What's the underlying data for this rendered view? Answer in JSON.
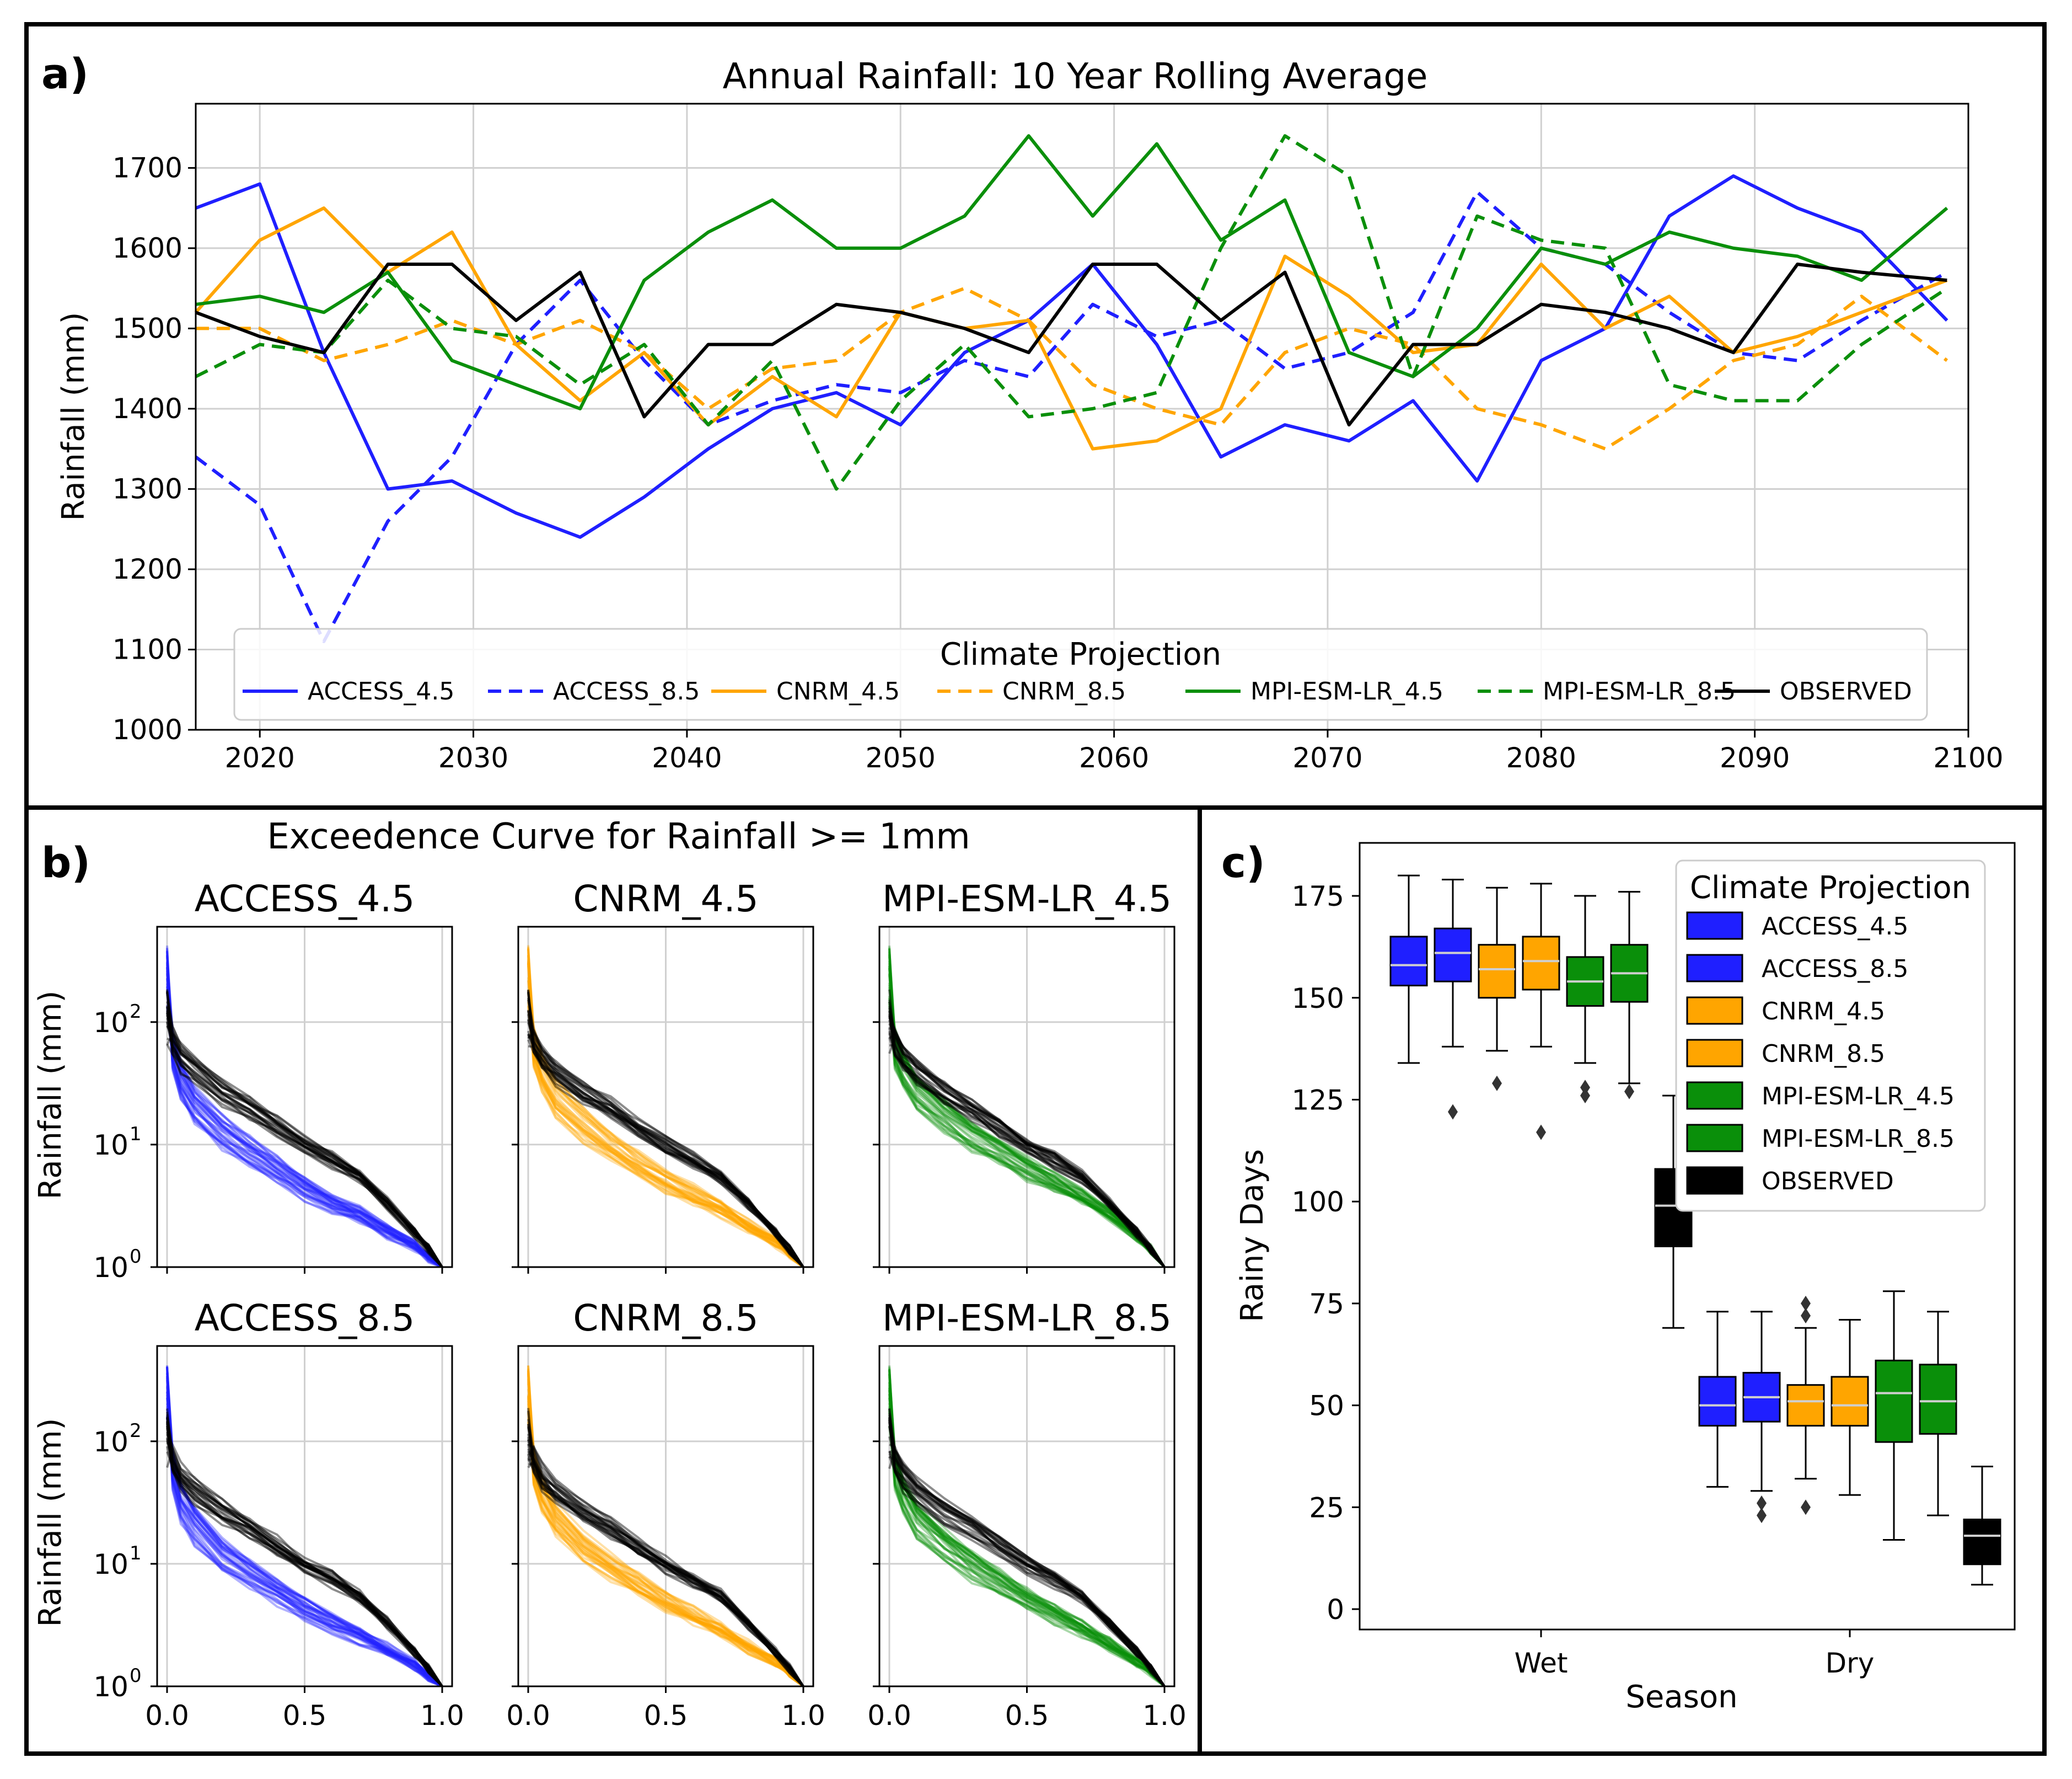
{
  "panel_labels": {
    "a": "a)",
    "b": "b)",
    "c": "c)"
  },
  "colors": {
    "blue": "#1f1fff",
    "orange": "#ffa500",
    "green": "#0a8f0a",
    "black": "#000000"
  },
  "chart_data": [
    {
      "type": "line",
      "title": "Annual Rainfall: 10 Year Rolling Average",
      "xlabel": "",
      "ylabel": "Rainfall (mm)",
      "xlim": [
        2017,
        2100
      ],
      "ylim": [
        1000,
        1780
      ],
      "x_ticks": [
        2020,
        2030,
        2040,
        2050,
        2060,
        2070,
        2080,
        2090,
        2100
      ],
      "y_ticks": [
        1000,
        1100,
        1200,
        1300,
        1400,
        1500,
        1600,
        1700
      ],
      "legend_title": "Climate Projection",
      "x": [
        2017,
        2020,
        2023,
        2026,
        2029,
        2032,
        2035,
        2038,
        2041,
        2044,
        2047,
        2050,
        2053,
        2056,
        2059,
        2062,
        2065,
        2068,
        2071,
        2074,
        2077,
        2080,
        2083,
        2086,
        2089,
        2092,
        2095,
        2099
      ],
      "series": [
        {
          "name": "ACCESS_4.5",
          "color": "blue",
          "dash": false,
          "values": [
            1650,
            1680,
            1470,
            1300,
            1310,
            1270,
            1240,
            1290,
            1350,
            1400,
            1420,
            1380,
            1470,
            1510,
            1580,
            1480,
            1340,
            1380,
            1360,
            1410,
            1310,
            1460,
            1500,
            1640,
            1690,
            1650,
            1620,
            1510
          ]
        },
        {
          "name": "ACCESS_8.5",
          "color": "blue",
          "dash": true,
          "values": [
            1340,
            1280,
            1110,
            1260,
            1340,
            1480,
            1560,
            1460,
            1380,
            1410,
            1430,
            1420,
            1460,
            1440,
            1530,
            1490,
            1510,
            1450,
            1470,
            1520,
            1670,
            1600,
            1580,
            1520,
            1470,
            1460,
            1510,
            1570
          ]
        },
        {
          "name": "CNRM_4.5",
          "color": "orange",
          "dash": false,
          "values": [
            1520,
            1610,
            1650,
            1570,
            1620,
            1480,
            1410,
            1470,
            1380,
            1440,
            1390,
            1520,
            1500,
            1510,
            1350,
            1360,
            1400,
            1590,
            1540,
            1470,
            1480,
            1580,
            1500,
            1540,
            1470,
            1490,
            1520,
            1560
          ]
        },
        {
          "name": "CNRM_8.5",
          "color": "orange",
          "dash": true,
          "values": [
            1500,
            1500,
            1460,
            1480,
            1510,
            1480,
            1510,
            1470,
            1400,
            1450,
            1460,
            1520,
            1550,
            1510,
            1430,
            1400,
            1380,
            1470,
            1500,
            1480,
            1400,
            1380,
            1350,
            1400,
            1460,
            1480,
            1540,
            1460
          ]
        },
        {
          "name": "MPI-ESM-LR_4.5",
          "color": "green",
          "dash": false,
          "values": [
            1530,
            1540,
            1520,
            1570,
            1460,
            1430,
            1400,
            1560,
            1620,
            1660,
            1600,
            1600,
            1640,
            1740,
            1640,
            1730,
            1610,
            1660,
            1470,
            1440,
            1500,
            1600,
            1580,
            1620,
            1600,
            1590,
            1560,
            1650
          ]
        },
        {
          "name": "MPI-ESM-LR_8.5",
          "color": "green",
          "dash": true,
          "values": [
            1440,
            1480,
            1470,
            1560,
            1500,
            1490,
            1430,
            1480,
            1380,
            1460,
            1300,
            1410,
            1480,
            1390,
            1400,
            1420,
            1600,
            1740,
            1690,
            1440,
            1640,
            1610,
            1600,
            1430,
            1410,
            1410,
            1480,
            1550
          ]
        },
        {
          "name": "OBSERVED",
          "color": "black",
          "dash": false,
          "values": [
            1520,
            1490,
            1470,
            1580,
            1580,
            1510,
            1570,
            1390,
            1480,
            1480,
            1530,
            1520,
            1500,
            1470,
            1580,
            1580,
            1510,
            1570,
            1380,
            1480,
            1480,
            1530,
            1520,
            1500,
            1470,
            1580,
            1570,
            1560
          ]
        }
      ]
    },
    {
      "type": "line",
      "title": "Exceedence Curve for Rainfall >= 1mm",
      "ylabel": "Rainfall (mm)",
      "yscale": "log",
      "xlim": [
        0,
        1
      ],
      "ylim": [
        1,
        600
      ],
      "x_ticks": [
        "0.0",
        "0.5",
        "1.0"
      ],
      "y_ticks": [
        "10",
        "10",
        "10"
      ],
      "y_tick_exponents": [
        "0",
        "1",
        "2"
      ],
      "x_sample": [
        0,
        0.02,
        0.05,
        0.1,
        0.2,
        0.3,
        0.4,
        0.5,
        0.6,
        0.7,
        0.8,
        0.9,
        0.95,
        1.0
      ],
      "subplots": [
        {
          "title": "ACCESS_4.5",
          "color": "blue",
          "model_curve": [
            250,
            60,
            35,
            22,
            13,
            9,
            6.5,
            4.5,
            3.4,
            2.7,
            2.0,
            1.5,
            1.2,
            1.0
          ],
          "observed_curve": [
            110,
            70,
            52,
            40,
            27,
            20,
            14,
            10,
            7.5,
            5.5,
            3.3,
            1.9,
            1.4,
            1.0
          ]
        },
        {
          "title": "CNRM_4.5",
          "color": "orange",
          "model_curve": [
            250,
            65,
            40,
            25,
            15,
            10,
            7,
            5.2,
            4,
            3,
            2.2,
            1.6,
            1.3,
            1.0
          ],
          "observed_curve": [
            110,
            70,
            52,
            40,
            27,
            20,
            14,
            10,
            7.5,
            5.5,
            3.3,
            1.9,
            1.4,
            1.0
          ]
        },
        {
          "title": "MPI-ESM-LR_4.5",
          "color": "green",
          "model_curve": [
            250,
            65,
            42,
            28,
            18,
            12,
            9,
            6.5,
            5,
            3.8,
            2.7,
            1.8,
            1.4,
            1.0
          ],
          "observed_curve": [
            110,
            70,
            52,
            40,
            27,
            20,
            14,
            10,
            7.5,
            5.5,
            3.3,
            1.9,
            1.4,
            1.0
          ]
        },
        {
          "title": "ACCESS_8.5",
          "color": "blue",
          "model_curve": [
            250,
            60,
            33,
            21,
            12,
            8.5,
            6,
            4.3,
            3.3,
            2.6,
            2.0,
            1.5,
            1.2,
            1.0
          ],
          "observed_curve": [
            110,
            70,
            52,
            40,
            27,
            20,
            14,
            10,
            7.5,
            5.5,
            3.3,
            1.9,
            1.4,
            1.0
          ]
        },
        {
          "title": "CNRM_8.5",
          "color": "orange",
          "model_curve": [
            250,
            62,
            38,
            24,
            14,
            9.5,
            6.8,
            5,
            3.8,
            2.9,
            2.1,
            1.6,
            1.3,
            1.0
          ],
          "observed_curve": [
            110,
            70,
            52,
            40,
            27,
            20,
            14,
            10,
            7.5,
            5.5,
            3.3,
            1.9,
            1.4,
            1.0
          ]
        },
        {
          "title": "MPI-ESM-LR_8.5",
          "color": "green",
          "model_curve": [
            250,
            62,
            38,
            24,
            15,
            10,
            7.2,
            5.2,
            4,
            3,
            2.2,
            1.6,
            1.3,
            1.0
          ],
          "observed_curve": [
            110,
            70,
            52,
            40,
            27,
            20,
            14,
            10,
            7.5,
            5.5,
            3.3,
            1.9,
            1.4,
            1.0
          ]
        }
      ]
    },
    {
      "type": "box",
      "xlabel": "Season",
      "ylabel": "Rainy Days",
      "categories": [
        "Wet",
        "Dry"
      ],
      "ylim": [
        -5,
        188
      ],
      "y_ticks": [
        0,
        25,
        50,
        75,
        100,
        125,
        150,
        175
      ],
      "legend_title": "Climate Projection",
      "series": [
        {
          "name": "ACCESS_4.5",
          "color": "blue",
          "boxes": [
            {
              "q1": 153,
              "median": 158,
              "q3": 165,
              "wlo": 134,
              "whi": 180,
              "out": []
            },
            {
              "q1": 45,
              "median": 50,
              "q3": 57,
              "wlo": 30,
              "whi": 73,
              "out": []
            }
          ]
        },
        {
          "name": "ACCESS_8.5",
          "color": "blue",
          "boxes": [
            {
              "q1": 154,
              "median": 161,
              "q3": 167,
              "wlo": 138,
              "whi": 179,
              "out": [
                122
              ]
            },
            {
              "q1": 46,
              "median": 52,
              "q3": 58,
              "wlo": 29,
              "whi": 73,
              "out": [
                23,
                26
              ]
            }
          ]
        },
        {
          "name": "CNRM_4.5",
          "color": "orange",
          "boxes": [
            {
              "q1": 150,
              "median": 157,
              "q3": 163,
              "wlo": 137,
              "whi": 177,
              "out": [
                129
              ]
            },
            {
              "q1": 45,
              "median": 51,
              "q3": 55,
              "wlo": 32,
              "whi": 69,
              "out": [
                25,
                72,
                75
              ]
            }
          ]
        },
        {
          "name": "CNRM_8.5",
          "color": "orange",
          "boxes": [
            {
              "q1": 152,
              "median": 159,
              "q3": 165,
              "wlo": 138,
              "whi": 178,
              "out": [
                117
              ]
            },
            {
              "q1": 45,
              "median": 50,
              "q3": 57,
              "wlo": 28,
              "whi": 71,
              "out": []
            }
          ]
        },
        {
          "name": "MPI-ESM-LR_4.5",
          "color": "green",
          "boxes": [
            {
              "q1": 148,
              "median": 154,
              "q3": 160,
              "wlo": 134,
              "whi": 175,
              "out": [
                126,
                128
              ]
            },
            {
              "q1": 41,
              "median": 53,
              "q3": 61,
              "wlo": 17,
              "whi": 78,
              "out": []
            }
          ]
        },
        {
          "name": "MPI-ESM-LR_8.5",
          "color": "green",
          "boxes": [
            {
              "q1": 149,
              "median": 156,
              "q3": 163,
              "wlo": 129,
              "whi": 176,
              "out": [
                127
              ]
            },
            {
              "q1": 43,
              "median": 51,
              "q3": 60,
              "wlo": 23,
              "whi": 73,
              "out": []
            }
          ]
        },
        {
          "name": "OBSERVED",
          "color": "black",
          "boxes": [
            {
              "q1": 89,
              "median": 99,
              "q3": 108,
              "wlo": 69,
              "whi": 126,
              "out": []
            },
            {
              "q1": 11,
              "median": 18,
              "q3": 22,
              "wlo": 6,
              "whi": 35,
              "out": []
            }
          ]
        }
      ]
    }
  ]
}
